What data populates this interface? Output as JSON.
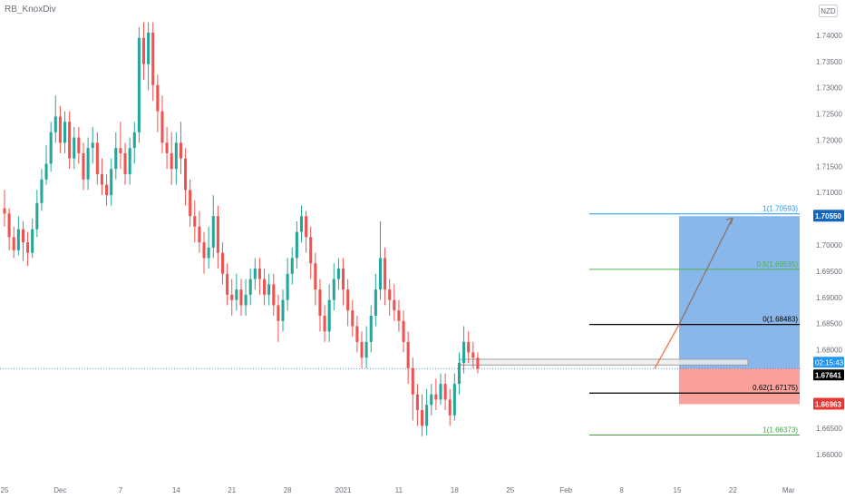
{
  "chart_data": {
    "type": "candlestick",
    "symbol_currency": "NZD",
    "author": "RB_KnoxDiv",
    "colors": {
      "up": "#26a69a",
      "down": "#ef5350",
      "bg": "#ffffff",
      "axis_text": "#6a6d78",
      "fib_top": "#2196f3",
      "fib_mid": "#4caf50",
      "fib_zero": "#000000",
      "fib_bottom": "#43a047",
      "target": "#4a90e2",
      "stop": "#f44336",
      "path": "#ef6c3b"
    },
    "y_axis": {
      "min": 1.655,
      "max": 1.745,
      "ticks": [
        "1.74000",
        "1.73500",
        "1.73000",
        "1.72500",
        "1.72000",
        "1.71500",
        "1.71000",
        "1.70500",
        "1.70000",
        "1.69500",
        "1.69000",
        "1.68500",
        "1.68000",
        "1.67500",
        "1.67000",
        "1.66500",
        "1.66000"
      ]
    },
    "x_axis": {
      "labels": [
        "25",
        "Dec",
        "7",
        "14",
        "21",
        "28",
        "2021",
        "11",
        "18",
        "25",
        "Feb",
        "8",
        "15",
        "22",
        "Mar"
      ],
      "label_positions": [
        0,
        12,
        25,
        37,
        49,
        61,
        73,
        85,
        97,
        109,
        121,
        133,
        145,
        157,
        169
      ]
    },
    "x_range": [
      0,
      171
    ],
    "candles": [
      [
        1.707,
        1.706,
        1.7105,
        1.7035
      ],
      [
        1.706,
        1.7015,
        1.707,
        1.699
      ],
      [
        1.7015,
        1.699,
        1.7035,
        1.6975
      ],
      [
        1.699,
        1.703,
        1.7055,
        1.698
      ],
      [
        1.703,
        1.7005,
        1.7045,
        1.697
      ],
      [
        1.7005,
        1.6985,
        1.7025,
        1.696
      ],
      [
        1.6985,
        1.703,
        1.705,
        1.6975
      ],
      [
        1.703,
        1.708,
        1.7105,
        1.7015
      ],
      [
        1.708,
        1.7125,
        1.7145,
        1.7065
      ],
      [
        1.7125,
        1.7155,
        1.719,
        1.7115
      ],
      [
        1.7155,
        1.7215,
        1.7235,
        1.714
      ],
      [
        1.7215,
        1.7245,
        1.7285,
        1.7195
      ],
      [
        1.7245,
        1.7195,
        1.7265,
        1.7175
      ],
      [
        1.7195,
        1.7235,
        1.7255,
        1.7175
      ],
      [
        1.7235,
        1.7165,
        1.7255,
        1.7145
      ],
      [
        1.7165,
        1.7205,
        1.7225,
        1.7145
      ],
      [
        1.7205,
        1.7175,
        1.7225,
        1.7155
      ],
      [
        1.7175,
        1.7125,
        1.7195,
        1.7105
      ],
      [
        1.7125,
        1.7185,
        1.7205,
        1.7105
      ],
      [
        1.7185,
        1.7195,
        1.7225,
        1.7155
      ],
      [
        1.7195,
        1.7135,
        1.7215,
        1.7115
      ],
      [
        1.7135,
        1.7115,
        1.7165,
        1.7095
      ],
      [
        1.7115,
        1.7095,
        1.7135,
        1.7075
      ],
      [
        1.7095,
        1.7145,
        1.7165,
        1.7075
      ],
      [
        1.7145,
        1.7185,
        1.7215,
        1.7125
      ],
      [
        1.7185,
        1.7175,
        1.7235,
        1.7145
      ],
      [
        1.7175,
        1.7135,
        1.7195,
        1.7115
      ],
      [
        1.7135,
        1.7185,
        1.7205,
        1.7115
      ],
      [
        1.7185,
        1.7215,
        1.7235,
        1.7155
      ],
      [
        1.7215,
        1.7395,
        1.7415,
        1.7195
      ],
      [
        1.7395,
        1.7345,
        1.7425,
        1.7315
      ],
      [
        1.7345,
        1.7405,
        1.7425,
        1.7295
      ],
      [
        1.7405,
        1.7305,
        1.7425,
        1.7275
      ],
      [
        1.7305,
        1.7255,
        1.7325,
        1.7215
      ],
      [
        1.7255,
        1.7195,
        1.7285,
        1.7175
      ],
      [
        1.7195,
        1.7175,
        1.7225,
        1.7145
      ],
      [
        1.7175,
        1.7145,
        1.7215,
        1.7115
      ],
      [
        1.7145,
        1.7195,
        1.7215,
        1.7115
      ],
      [
        1.7195,
        1.7165,
        1.7235,
        1.7135
      ],
      [
        1.7165,
        1.7105,
        1.7185,
        1.7075
      ],
      [
        1.7105,
        1.7055,
        1.7125,
        1.7035
      ],
      [
        1.7055,
        1.7035,
        1.7085,
        1.7005
      ],
      [
        1.7035,
        1.7005,
        1.7065,
        1.6985
      ],
      [
        1.7005,
        1.6975,
        1.7025,
        1.6945
      ],
      [
        1.6975,
        1.6995,
        1.7035,
        1.6955
      ],
      [
        1.6995,
        1.7055,
        1.7095,
        1.6975
      ],
      [
        1.7055,
        1.6985,
        1.7075,
        1.6955
      ],
      [
        1.6985,
        1.6945,
        1.7005,
        1.6925
      ],
      [
        1.6945,
        1.6905,
        1.6965,
        1.6885
      ],
      [
        1.6905,
        1.6895,
        1.6935,
        1.6865
      ],
      [
        1.6895,
        1.6915,
        1.6945,
        1.6875
      ],
      [
        1.6915,
        1.6885,
        1.6935,
        1.6865
      ],
      [
        1.6885,
        1.6905,
        1.6935,
        1.6865
      ],
      [
        1.6905,
        1.6935,
        1.6955,
        1.6885
      ],
      [
        1.6935,
        1.6955,
        1.6975,
        1.6915
      ],
      [
        1.6955,
        1.6935,
        1.6975,
        1.6905
      ],
      [
        1.6935,
        1.6905,
        1.6955,
        1.6885
      ],
      [
        1.6905,
        1.6925,
        1.6945,
        1.6885
      ],
      [
        1.6925,
        1.6885,
        1.6945,
        1.6865
      ],
      [
        1.6885,
        1.6855,
        1.6905,
        1.6815
      ],
      [
        1.6855,
        1.6895,
        1.6915,
        1.6835
      ],
      [
        1.6895,
        1.6945,
        1.6975,
        1.6875
      ],
      [
        1.6945,
        1.6975,
        1.6995,
        1.6925
      ],
      [
        1.6975,
        1.7025,
        1.7045,
        1.6955
      ],
      [
        1.7025,
        1.7055,
        1.7075,
        1.7005
      ],
      [
        1.7055,
        1.7015,
        1.7065,
        1.6985
      ],
      [
        1.7015,
        1.6965,
        1.7035,
        1.6935
      ],
      [
        1.6965,
        1.6915,
        1.6985,
        1.6885
      ],
      [
        1.6915,
        1.6865,
        1.6935,
        1.6835
      ],
      [
        1.6865,
        1.6835,
        1.6885,
        1.6815
      ],
      [
        1.6835,
        1.6895,
        1.6925,
        1.6815
      ],
      [
        1.6895,
        1.6935,
        1.6965,
        1.6875
      ],
      [
        1.6935,
        1.6955,
        1.6975,
        1.6915
      ],
      [
        1.6955,
        1.6915,
        1.6975,
        1.6885
      ],
      [
        1.6915,
        1.6875,
        1.6935,
        1.6845
      ],
      [
        1.6875,
        1.6845,
        1.6895,
        1.6825
      ],
      [
        1.6845,
        1.6815,
        1.6865,
        1.6795
      ],
      [
        1.6815,
        1.6785,
        1.6835,
        1.6765
      ],
      [
        1.6785,
        1.6815,
        1.6845,
        1.6765
      ],
      [
        1.6815,
        1.6865,
        1.6885,
        1.6795
      ],
      [
        1.6865,
        1.6915,
        1.6945,
        1.6845
      ],
      [
        1.6915,
        1.6975,
        1.7045,
        1.6895
      ],
      [
        1.6975,
        1.6915,
        1.6995,
        1.6885
      ],
      [
        1.6915,
        1.6895,
        1.6935,
        1.6865
      ],
      [
        1.6895,
        1.6875,
        1.6925,
        1.6855
      ],
      [
        1.6875,
        1.6855,
        1.6895,
        1.6835
      ],
      [
        1.6855,
        1.6815,
        1.6875,
        1.6795
      ],
      [
        1.6815,
        1.6765,
        1.6835,
        1.6735
      ],
      [
        1.6765,
        1.6715,
        1.6785,
        1.6665
      ],
      [
        1.6715,
        1.6685,
        1.6735,
        1.6655
      ],
      [
        1.6685,
        1.6655,
        1.6715,
        1.6635
      ],
      [
        1.6655,
        1.6695,
        1.6725,
        1.6637
      ],
      [
        1.6695,
        1.6715,
        1.6735,
        1.6675
      ],
      [
        1.6715,
        1.6705,
        1.6745,
        1.6685
      ],
      [
        1.6705,
        1.6735,
        1.6755,
        1.6695
      ],
      [
        1.6735,
        1.6705,
        1.6755,
        1.6685
      ],
      [
        1.6705,
        1.6675,
        1.6725,
        1.6655
      ],
      [
        1.6675,
        1.6735,
        1.6755,
        1.6665
      ],
      [
        1.6735,
        1.6775,
        1.6795,
        1.6715
      ],
      [
        1.6775,
        1.6815,
        1.6845,
        1.6755
      ],
      [
        1.6815,
        1.6795,
        1.6835,
        1.6775
      ],
      [
        1.6795,
        1.6785,
        1.6815,
        1.6765
      ],
      [
        1.6785,
        1.6764,
        1.6795,
        1.6755
      ]
    ],
    "price_lines": {
      "current": {
        "label": "1.67641",
        "value": 1.67641,
        "countdown": "02:15:43",
        "price_display": "1.67641"
      },
      "target_label": {
        "label": "1.70550",
        "value": 1.7055
      },
      "stop_label": {
        "label": "1.66963",
        "value": 1.66963
      }
    },
    "fib_levels": [
      {
        "label": "1(1.70593)",
        "value": 1.70593,
        "color": "#2196f3"
      },
      {
        "label": "0.5(1.69535)",
        "value": 1.69535,
        "color": "#4caf50"
      },
      {
        "label": "0(1.68483)",
        "value": 1.68483,
        "color": "#000000"
      },
      {
        "label": "0.62(1.67175)",
        "value": 1.67175,
        "color": "#000000"
      },
      {
        "label": "1(1.66373)",
        "value": 1.66373,
        "color": "#43a047"
      }
    ],
    "annotations": {
      "support_zone": {
        "top": 1.6782,
        "bottom": 1.6771
      },
      "position": {
        "entry": 1.67641,
        "target": 1.7055,
        "stop": 1.66963
      }
    }
  }
}
